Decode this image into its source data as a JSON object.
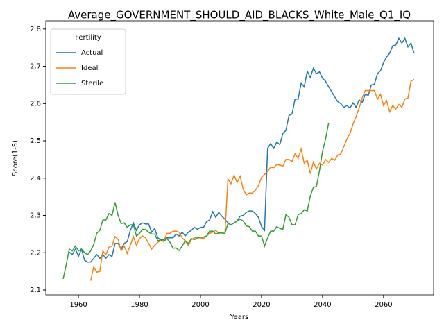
{
  "chart_data": {
    "type": "line",
    "title": "Average_GOVERNMENT_SHOULD_AID_BLACKS_White_Male_Q1_IQ",
    "xlabel": "Years",
    "ylabel": "Score(1-5)",
    "legend_title": "Fertility",
    "legend_loc": "upper left",
    "xlim": [
      1949.3,
      2076.4
    ],
    "ylim": [
      2.087,
      2.822
    ],
    "xticks": [
      1960,
      1980,
      2000,
      2020,
      2040,
      2060
    ],
    "yticks": [
      2.1,
      2.2,
      2.3,
      2.4,
      2.5,
      2.6,
      2.7,
      2.8
    ],
    "x": [
      1955,
      1956,
      1957,
      1958,
      1959,
      1960,
      1961,
      1962,
      1963,
      1964,
      1965,
      1966,
      1967,
      1968,
      1969,
      1970,
      1971,
      1972,
      1973,
      1974,
      1975,
      1976,
      1977,
      1978,
      1979,
      1980,
      1981,
      1982,
      1983,
      1984,
      1985,
      1986,
      1987,
      1988,
      1989,
      1990,
      1991,
      1992,
      1993,
      1994,
      1995,
      1996,
      1997,
      1998,
      1999,
      2000,
      2001,
      2002,
      2003,
      2004,
      2005,
      2006,
      2007,
      2008,
      2009,
      2010,
      2011,
      2012,
      2013,
      2014,
      2015,
      2016,
      2017,
      2018,
      2019,
      2020,
      2021,
      2022,
      2023,
      2024,
      2025,
      2026,
      2027,
      2028,
      2029,
      2030,
      2031,
      2032,
      2033,
      2034,
      2035,
      2036,
      2037,
      2038,
      2039,
      2040,
      2041,
      2042,
      2043,
      2044,
      2045,
      2046,
      2047,
      2048,
      2049,
      2050,
      2051,
      2052,
      2053,
      2054,
      2055,
      2056,
      2057,
      2058,
      2059,
      2060,
      2061,
      2062,
      2063,
      2064,
      2065,
      2066,
      2067,
      2068,
      2069,
      2070
    ],
    "series": [
      {
        "name": "Actual",
        "color": "#1f77b4",
        "values": [
          null,
          null,
          2.202,
          2.195,
          2.21,
          2.19,
          2.21,
          2.18,
          2.175,
          2.175,
          2.185,
          2.195,
          2.185,
          2.195,
          2.185,
          2.195,
          2.19,
          2.225,
          2.225,
          2.21,
          2.225,
          2.23,
          2.26,
          2.28,
          2.26,
          2.275,
          2.28,
          2.277,
          2.277,
          2.255,
          2.265,
          2.24,
          2.235,
          2.235,
          2.24,
          2.24,
          2.24,
          2.25,
          2.245,
          2.255,
          2.245,
          2.255,
          2.26,
          2.268,
          2.263,
          2.268,
          2.268,
          2.283,
          2.288,
          2.31,
          2.295,
          2.308,
          2.298,
          2.29,
          2.28,
          2.275,
          2.28,
          2.285,
          2.298,
          2.3,
          2.308,
          2.312,
          2.312,
          2.305,
          2.295,
          2.27,
          2.26,
          2.48,
          2.493,
          2.48,
          2.497,
          2.49,
          2.52,
          2.528,
          2.568,
          2.572,
          2.612,
          2.612,
          2.655,
          2.645,
          2.687,
          2.67,
          2.695,
          2.68,
          2.685,
          2.668,
          2.66,
          2.645,
          2.632,
          2.618,
          2.605,
          2.6,
          2.59,
          2.595,
          2.588,
          2.602,
          2.59,
          2.61,
          2.603,
          2.625,
          2.622,
          2.65,
          2.652,
          2.68,
          2.688,
          2.71,
          2.725,
          2.735,
          2.755,
          2.757,
          2.775,
          2.762,
          2.775,
          2.752,
          2.762,
          2.735
        ]
      },
      {
        "name": "Ideal",
        "color": "#ff7f0e",
        "values": [
          null,
          null,
          null,
          null,
          null,
          null,
          null,
          null,
          null,
          2.125,
          2.162,
          2.148,
          2.15,
          2.205,
          2.195,
          2.215,
          2.218,
          2.243,
          2.236,
          2.205,
          2.218,
          2.198,
          2.22,
          2.243,
          2.22,
          2.238,
          2.245,
          2.24,
          2.225,
          2.21,
          2.22,
          2.228,
          2.232,
          2.232,
          2.252,
          2.252,
          2.258,
          2.258,
          2.255,
          2.24,
          2.232,
          2.22,
          2.235,
          2.24,
          2.24,
          2.24,
          2.238,
          2.245,
          2.252,
          2.255,
          2.26,
          2.252,
          2.255,
          2.25,
          2.398,
          2.385,
          2.408,
          2.388,
          2.405,
          2.37,
          2.355,
          2.36,
          2.36,
          2.368,
          2.38,
          2.402,
          2.41,
          2.418,
          2.43,
          2.428,
          2.437,
          2.435,
          2.432,
          2.45,
          2.45,
          2.445,
          2.465,
          2.453,
          2.478,
          2.44,
          2.448,
          2.412,
          2.443,
          2.425,
          2.44,
          2.435,
          2.45,
          2.442,
          2.453,
          2.448,
          2.462,
          2.465,
          2.485,
          2.505,
          2.52,
          2.545,
          2.565,
          2.588,
          2.615,
          2.635,
          2.635,
          2.635,
          2.635,
          2.612,
          2.625,
          2.595,
          2.608,
          2.578,
          2.595,
          2.585,
          2.598,
          2.59,
          2.612,
          2.615,
          2.66,
          2.665
        ]
      },
      {
        "name": "Sterile",
        "color": "#2ca02c",
        "values": [
          2.13,
          2.168,
          2.21,
          2.205,
          2.218,
          2.205,
          2.21,
          2.2,
          2.195,
          2.205,
          2.222,
          2.252,
          2.26,
          2.288,
          2.288,
          2.305,
          2.3,
          2.335,
          2.3,
          2.278,
          2.28,
          2.268,
          2.275,
          2.275,
          2.245,
          2.252,
          2.263,
          2.262,
          2.255,
          2.25,
          2.25,
          2.232,
          2.235,
          2.23,
          2.238,
          2.228,
          2.212,
          2.213,
          2.206,
          2.218,
          2.232,
          2.225,
          2.238,
          2.235,
          2.24,
          2.242,
          2.242,
          2.245,
          2.258,
          2.258,
          2.25,
          2.253,
          2.253,
          2.252,
          2.278,
          2.275,
          2.28,
          2.285,
          2.29,
          2.285,
          2.272,
          2.27,
          2.258,
          2.258,
          2.245,
          2.245,
          2.218,
          2.24,
          2.258,
          2.258,
          2.27,
          2.265,
          2.263,
          2.302,
          2.295,
          2.275,
          2.275,
          2.302,
          2.305,
          2.315,
          2.312,
          2.352,
          2.375,
          2.378,
          2.42,
          2.472,
          2.505,
          2.548,
          null,
          null,
          null,
          null,
          null,
          null,
          null,
          null,
          null,
          null,
          null,
          null,
          null,
          null,
          null,
          null,
          null,
          null,
          null,
          null,
          null,
          null,
          null,
          null,
          null,
          null,
          null,
          null
        ]
      }
    ]
  }
}
